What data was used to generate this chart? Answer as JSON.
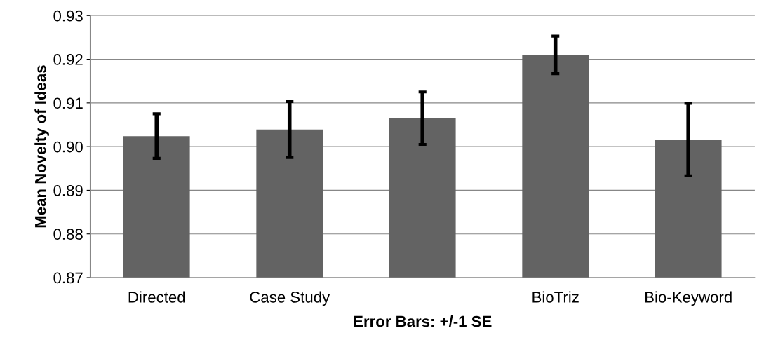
{
  "chart_data": {
    "type": "bar",
    "xlabel": "Error Bars: +/-1 SE",
    "ylabel": "Mean Novelty of Ideas",
    "categories": [
      "Directed",
      "Case Study",
      null,
      "BioTriz",
      "Bio-Keyword"
    ],
    "values": [
      0.9024,
      0.9039,
      0.9065,
      0.921,
      0.9016
    ],
    "errors": [
      0.0051,
      0.0064,
      0.006,
      0.0043,
      0.0083
    ],
    "color": "#636363",
    "ylim": [
      0.87,
      0.93
    ],
    "yticks": [
      {
        "value": 0.87,
        "label": "0.87"
      },
      {
        "value": 0.88,
        "label": "0.88"
      },
      {
        "value": 0.89,
        "label": "0.89"
      },
      {
        "value": 0.9,
        "label": "0.90"
      },
      {
        "value": 0.91,
        "label": "0.91"
      },
      {
        "value": 0.92,
        "label": "0.92"
      },
      {
        "value": 0.93,
        "label": "0.93"
      }
    ],
    "grid": "y",
    "legend": false
  }
}
